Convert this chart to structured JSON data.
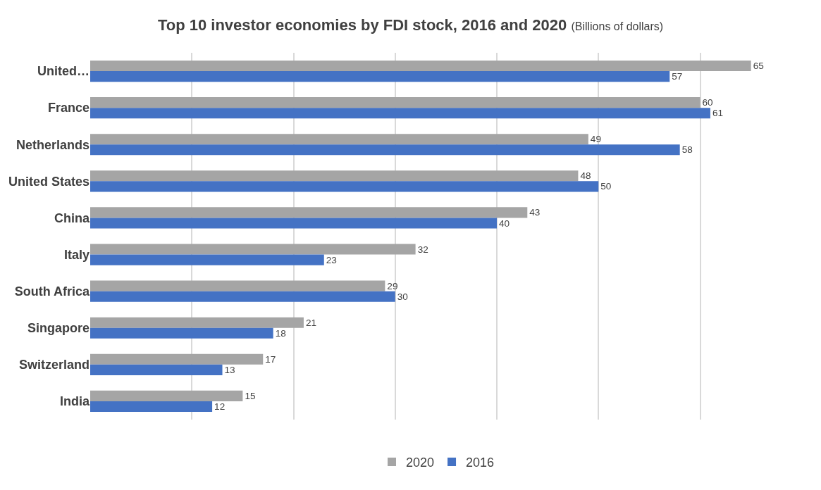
{
  "chart_data": {
    "type": "bar",
    "orientation": "horizontal",
    "title": "Top 10 investor economies by FDI stock, 2016 and 2020",
    "subtitle": "(Billions of dollars)",
    "categories": [
      "United…",
      "France",
      "Netherlands",
      "United States",
      "China",
      "Italy",
      "South Africa",
      "Singapore",
      "Switzerland",
      "India"
    ],
    "series": [
      {
        "name": "2020",
        "color": "#a5a5a5",
        "values": [
          65,
          60,
          49,
          48,
          43,
          32,
          29,
          21,
          17,
          15
        ]
      },
      {
        "name": "2016",
        "color": "#4472c4",
        "values": [
          57,
          61,
          58,
          50,
          40,
          23,
          30,
          18,
          13,
          12
        ]
      }
    ],
    "tick_labels": "y",
    "grid": "x",
    "legend": "bottom",
    "data_labels": true
  }
}
